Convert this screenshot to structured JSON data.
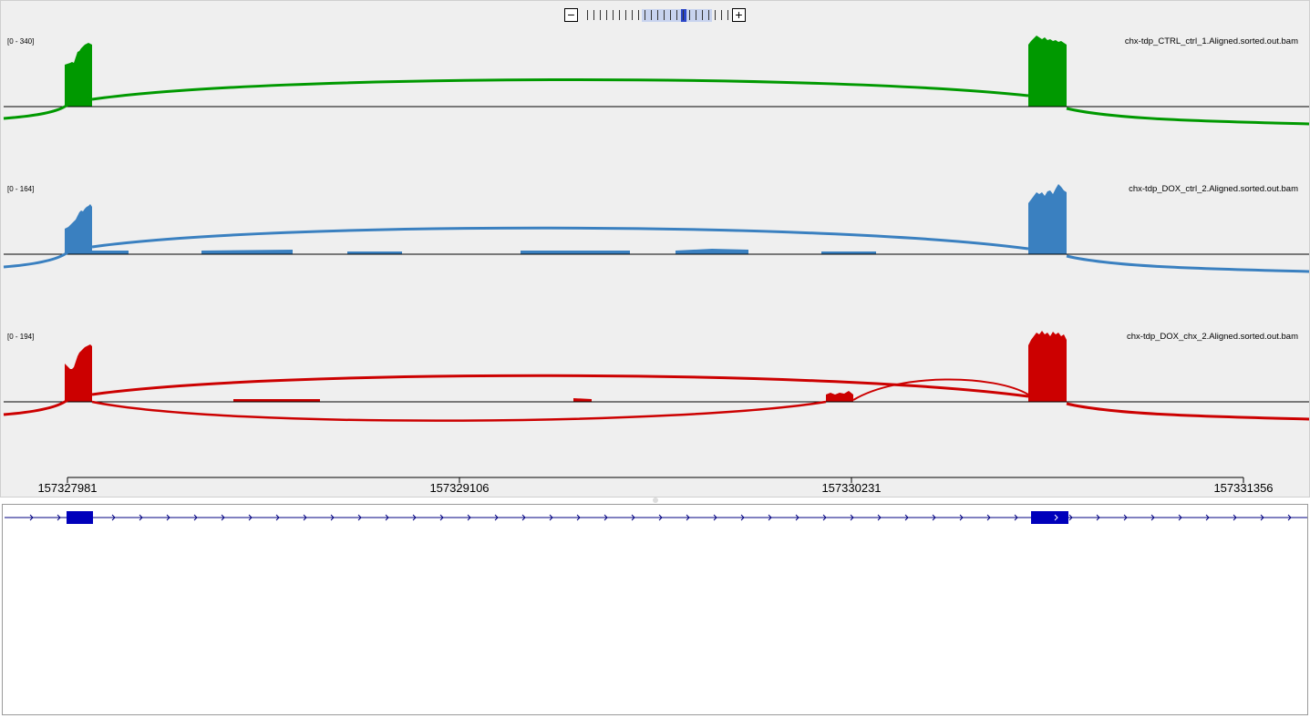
{
  "zoom": {
    "out_label": "−",
    "in_label": "+",
    "levels": 23,
    "current_level": 15,
    "range_start": 9,
    "range_end": 20
  },
  "ruler": {
    "ticks": [
      "157327981",
      "157329106",
      "157330231",
      "157331356"
    ]
  },
  "tracks": [
    {
      "id": "ctrl",
      "name": "chx-tdp_CTRL_ctrl_1.Aligned.sorted.out.bam",
      "range": "[0 - 340]",
      "color": "#009900"
    },
    {
      "id": "dox",
      "name": "chx-tdp_DOX_ctrl_2.Aligned.sorted.out.bam",
      "range": "[0 - 164]",
      "color": "#3a80c0"
    },
    {
      "id": "chx",
      "name": "chx-tdp_DOX_chx_2.Aligned.sorted.out.bam",
      "range": "[0 - 194]",
      "color": "#cc0000"
    }
  ],
  "gene": {
    "color": "#0000bb"
  }
}
